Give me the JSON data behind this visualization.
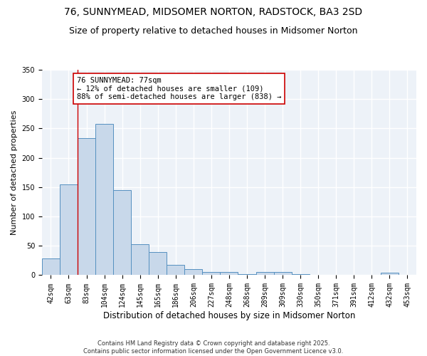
{
  "title": "76, SUNNYMEAD, MIDSOMER NORTON, RADSTOCK, BA3 2SD",
  "subtitle": "Size of property relative to detached houses in Midsomer Norton",
  "xlabel": "Distribution of detached houses by size in Midsomer Norton",
  "ylabel": "Number of detached properties",
  "categories": [
    "42sqm",
    "63sqm",
    "83sqm",
    "104sqm",
    "124sqm",
    "145sqm",
    "165sqm",
    "186sqm",
    "206sqm",
    "227sqm",
    "248sqm",
    "268sqm",
    "289sqm",
    "309sqm",
    "330sqm",
    "350sqm",
    "371sqm",
    "391sqm",
    "412sqm",
    "432sqm",
    "453sqm"
  ],
  "values": [
    28,
    155,
    233,
    258,
    145,
    53,
    39,
    18,
    10,
    6,
    6,
    2,
    5,
    5,
    2,
    0,
    0,
    0,
    0,
    4,
    0
  ],
  "bar_color": "#c8d8ea",
  "bar_edge_color": "#5590c0",
  "red_line_x": 1.5,
  "annotation_text": "76 SUNNYMEAD: 77sqm\n← 12% of detached houses are smaller (109)\n88% of semi-detached houses are larger (838) →",
  "annotation_box_color": "white",
  "annotation_box_edge_color": "#cc0000",
  "red_line_color": "#cc0000",
  "ylim": [
    0,
    350
  ],
  "yticks": [
    0,
    50,
    100,
    150,
    200,
    250,
    300,
    350
  ],
  "background_color": "#edf2f8",
  "grid_color": "white",
  "footer": "Contains HM Land Registry data © Crown copyright and database right 2025.\nContains public sector information licensed under the Open Government Licence v3.0.",
  "title_fontsize": 10,
  "subtitle_fontsize": 9,
  "xlabel_fontsize": 8.5,
  "ylabel_fontsize": 8,
  "tick_fontsize": 7,
  "annotation_fontsize": 7.5,
  "footer_fontsize": 6
}
